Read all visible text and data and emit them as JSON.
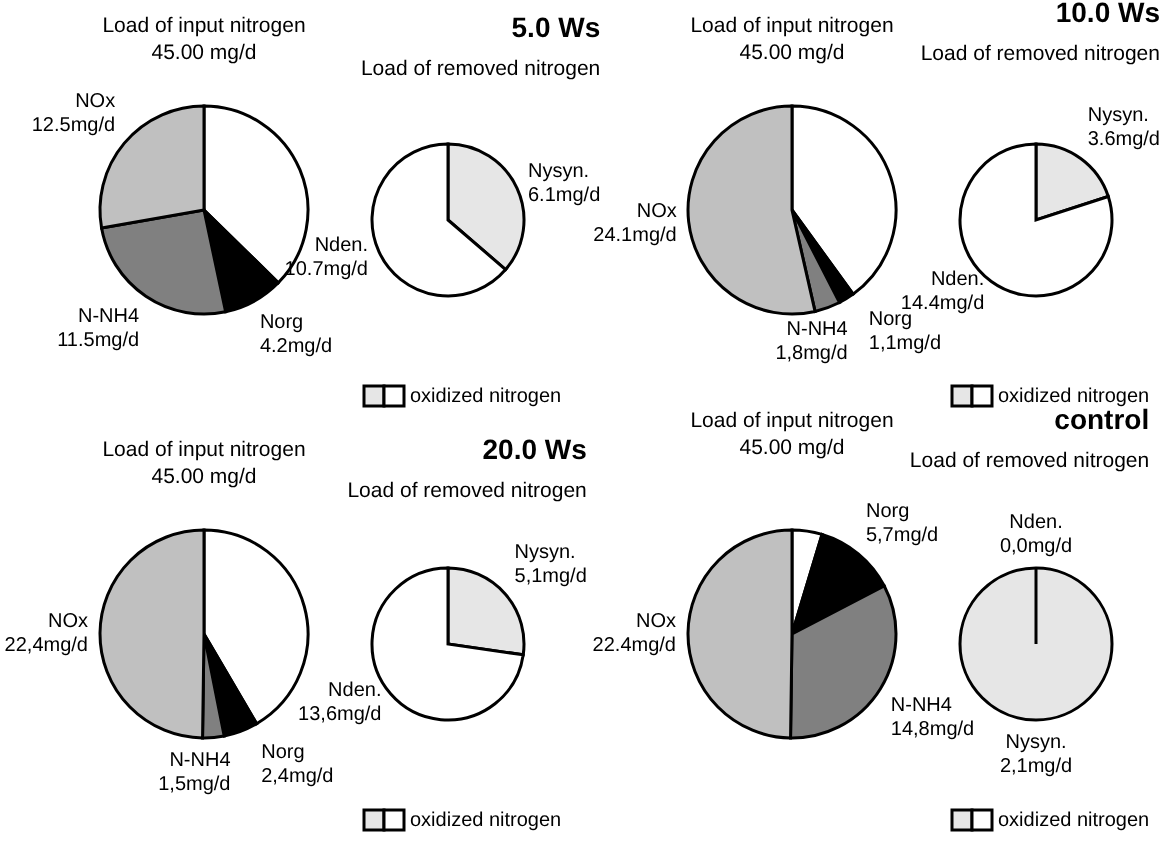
{
  "chart_data": [
    {
      "type": "pie",
      "title": "Load of input nitrogen",
      "subtitle": "45.00 mg/d",
      "categories": [
        null,
        "Norg",
        "N-NH4",
        "NOx"
      ],
      "values": [
        16.8,
        4.2,
        11.5,
        12.5
      ],
      "colors": [
        "#ffffff",
        "#000000",
        "#808080",
        "#c0c0c0"
      ],
      "value_labels": [
        null,
        "4.2mg/d",
        "11.5mg/d",
        "12.5mg/d"
      ]
    },
    {
      "type": "pie",
      "title": "5.0 Ws",
      "subtitle": "Load of removed nitrogen",
      "categories": [
        "Nysyn.",
        "Nden."
      ],
      "values": [
        6.1,
        10.7
      ],
      "colors": [
        "#e6e6e6",
        "#ffffff"
      ],
      "value_labels": [
        "6.1mg/d",
        "10.7mg/d"
      ],
      "annotations": [
        "oxidized nitrogen"
      ]
    },
    {
      "type": "pie",
      "title": "Load of input nitrogen",
      "subtitle": "45.00 mg/d",
      "categories": [
        null,
        "Norg",
        "N-NH4",
        "NOx"
      ],
      "values": [
        18.0,
        1.1,
        1.8,
        24.1
      ],
      "colors": [
        "#ffffff",
        "#000000",
        "#808080",
        "#c0c0c0"
      ],
      "value_labels": [
        null,
        "1,1mg/d",
        "1,8mg/d",
        "24.1mg/d"
      ]
    },
    {
      "type": "pie",
      "title": "10.0 Ws",
      "subtitle": "Load of removed nitrogen",
      "categories": [
        "Nysyn.",
        "Nden."
      ],
      "values": [
        3.6,
        14.4
      ],
      "colors": [
        "#e6e6e6",
        "#ffffff"
      ],
      "value_labels": [
        "3.6mg/d",
        "14.4mg/d"
      ],
      "annotations": [
        "oxidized nitrogen"
      ]
    },
    {
      "type": "pie",
      "title": "Load of input nitrogen",
      "subtitle": "45.00 mg/d",
      "categories": [
        null,
        "Norg",
        "N-NH4",
        "NOx"
      ],
      "values": [
        18.7,
        2.4,
        1.5,
        22.4
      ],
      "colors": [
        "#ffffff",
        "#000000",
        "#808080",
        "#c0c0c0"
      ],
      "value_labels": [
        null,
        "2,4mg/d",
        "1,5mg/d",
        "22,4mg/d"
      ]
    },
    {
      "type": "pie",
      "title": "20.0 Ws",
      "subtitle": "Load of removed nitrogen",
      "categories": [
        "Nysyn.",
        "Nden."
      ],
      "values": [
        5.1,
        13.6
      ],
      "colors": [
        "#e6e6e6",
        "#ffffff"
      ],
      "value_labels": [
        "5,1mg/d",
        "13,6mg/d"
      ],
      "annotations": [
        "oxidized nitrogen"
      ]
    },
    {
      "type": "pie",
      "title": "Load of input nitrogen",
      "subtitle": "45.00 mg/d",
      "categories": [
        null,
        "Norg",
        "N-NH4",
        "NOx"
      ],
      "values": [
        2.1,
        5.7,
        14.8,
        22.4
      ],
      "colors": [
        "#ffffff",
        "#000000",
        "#808080",
        "#c0c0c0"
      ],
      "value_labels": [
        null,
        "5,7mg/d",
        "14,8mg/d",
        "22.4mg/d"
      ]
    },
    {
      "type": "pie",
      "title": "control",
      "subtitle": "Load of removed nitrogen",
      "categories": [
        "Nysyn.",
        "Nden."
      ],
      "values": [
        2.1,
        0.0
      ],
      "colors": [
        "#e6e6e6",
        "#ffffff"
      ],
      "value_labels": [
        "2,1mg/d",
        "0,0mg/d"
      ],
      "annotations": [
        "oxidized nitrogen"
      ]
    }
  ]
}
